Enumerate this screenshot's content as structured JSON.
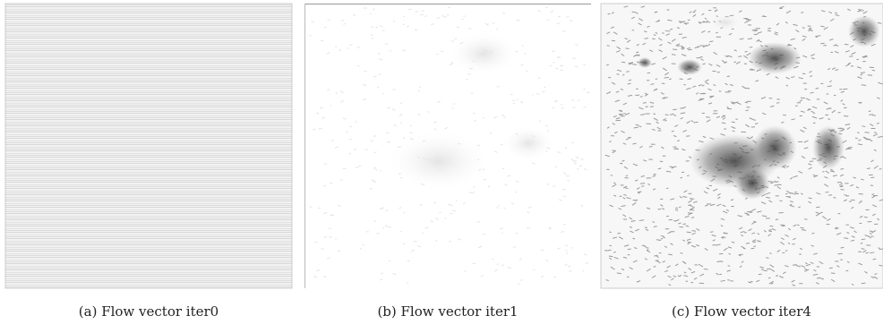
{
  "figure": {
    "panels": [
      {
        "caption": "(a) Flow vector iter0"
      },
      {
        "caption": "(b) Flow vector iter1"
      },
      {
        "caption": "(c) Flow vector iter4"
      }
    ]
  }
}
